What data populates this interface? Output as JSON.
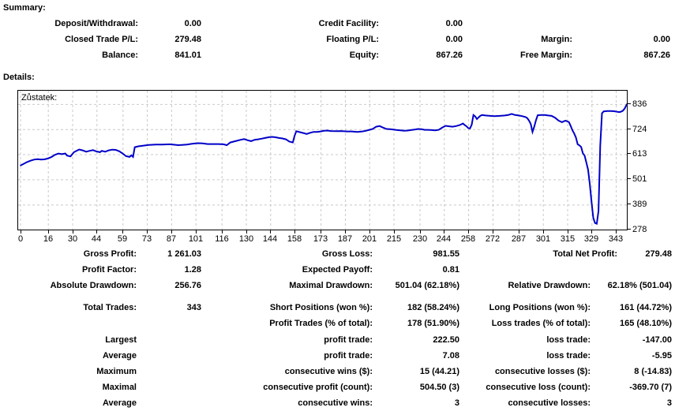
{
  "summary": {
    "title": "Summary:",
    "rows": [
      [
        {
          "label": "Deposit/Withdrawal:",
          "value": "0.00"
        },
        {
          "label": "Credit Facility:",
          "value": "0.00"
        },
        {
          "label": "",
          "value": ""
        }
      ],
      [
        {
          "label": "Closed Trade P/L:",
          "value": "279.48"
        },
        {
          "label": "Floating P/L:",
          "value": "0.00"
        },
        {
          "label": "Margin:",
          "value": "0.00"
        }
      ],
      [
        {
          "label": "Balance:",
          "value": "841.01"
        },
        {
          "label": "Equity:",
          "value": "867.26"
        },
        {
          "label": "Free Margin:",
          "value": "867.26"
        }
      ]
    ]
  },
  "details": {
    "title": "Details:",
    "rows": [
      [
        {
          "label": "Gross Profit:",
          "value": "1 261.03"
        },
        {
          "label": "Gross Loss:",
          "value": "981.55"
        },
        {
          "label": "Total Net Profit:",
          "value": "279.48"
        }
      ],
      [
        {
          "label": "Profit Factor:",
          "value": "1.28"
        },
        {
          "label": "Expected Payoff:",
          "value": "0.81"
        },
        {
          "label": "",
          "value": ""
        }
      ],
      [
        {
          "label": "Absolute Drawdown:",
          "value": "256.76"
        },
        {
          "label": "Maximal Drawdown:",
          "value": "501.04 (62.18%)"
        },
        {
          "label": "Relative Drawdown:",
          "value": "62.18% (501.04)"
        }
      ],
      [
        {
          "label": "Total Trades:",
          "value": "343"
        },
        {
          "label": "Short Positions (won %):",
          "value": "182 (58.24%)"
        },
        {
          "label": "Long Positions (won %):",
          "value": "161 (44.72%)"
        }
      ],
      [
        {
          "label": "",
          "value": ""
        },
        {
          "label": "Profit Trades (% of total):",
          "value": "178 (51.90%)"
        },
        {
          "label": "Loss trades (% of total):",
          "value": "165 (48.10%)"
        }
      ],
      [
        {
          "label": "Largest",
          "value": ""
        },
        {
          "label": "profit trade:",
          "value": "222.50"
        },
        {
          "label": "loss trade:",
          "value": "-147.00"
        }
      ],
      [
        {
          "label": "Average",
          "value": ""
        },
        {
          "label": "profit trade:",
          "value": "7.08"
        },
        {
          "label": "loss trade:",
          "value": "-5.95"
        }
      ],
      [
        {
          "label": "Maximum",
          "value": ""
        },
        {
          "label": "consecutive wins ($):",
          "value": "15 (44.21)"
        },
        {
          "label": "consecutive losses ($):",
          "value": "8 (-14.83)"
        }
      ],
      [
        {
          "label": "Maximal",
          "value": ""
        },
        {
          "label": "consecutive profit (count):",
          "value": "504.50 (3)"
        },
        {
          "label": "consecutive loss (count):",
          "value": "-369.70 (7)"
        }
      ],
      [
        {
          "label": "Average",
          "value": ""
        },
        {
          "label": "consecutive wins:",
          "value": "3"
        },
        {
          "label": "consecutive losses:",
          "value": "3"
        }
      ]
    ]
  },
  "chart_data": {
    "type": "line",
    "series_label": "Zůstatek:",
    "xlabel": "",
    "ylabel": "",
    "x_ticks": [
      0,
      16,
      30,
      44,
      59,
      73,
      87,
      101,
      116,
      130,
      144,
      158,
      173,
      187,
      201,
      215,
      230,
      244,
      258,
      272,
      287,
      301,
      315,
      329,
      343
    ],
    "y_ticks": [
      278,
      389,
      501,
      613,
      724,
      836
    ],
    "xlim": [
      0,
      350
    ],
    "ylim": [
      278,
      895
    ],
    "grid": true,
    "legend_position": "none",
    "line_color": "#0000c8",
    "grid_color": "#c9c9c9",
    "points": [
      [
        0,
        562
      ],
      [
        2,
        570
      ],
      [
        4,
        578
      ],
      [
        6,
        584
      ],
      [
        8,
        589
      ],
      [
        10,
        591
      ],
      [
        12,
        589
      ],
      [
        14,
        590
      ],
      [
        16,
        594
      ],
      [
        18,
        600
      ],
      [
        20,
        610
      ],
      [
        22,
        616
      ],
      [
        24,
        613
      ],
      [
        26,
        616
      ],
      [
        27,
        607
      ],
      [
        29,
        603
      ],
      [
        31,
        622
      ],
      [
        33,
        630
      ],
      [
        34,
        634
      ],
      [
        36,
        630
      ],
      [
        38,
        624
      ],
      [
        40,
        628
      ],
      [
        42,
        631
      ],
      [
        44,
        625
      ],
      [
        46,
        622
      ],
      [
        47,
        628
      ],
      [
        49,
        624
      ],
      [
        51,
        630
      ],
      [
        53,
        633
      ],
      [
        55,
        632
      ],
      [
        57,
        626
      ],
      [
        59,
        616
      ],
      [
        61,
        604
      ],
      [
        63,
        601
      ],
      [
        64,
        608
      ],
      [
        65,
        601
      ],
      [
        66,
        644
      ],
      [
        68,
        648
      ],
      [
        71,
        651
      ],
      [
        74,
        654
      ],
      [
        78,
        656
      ],
      [
        82,
        656
      ],
      [
        86,
        657
      ],
      [
        89,
        655
      ],
      [
        91,
        653
      ],
      [
        93,
        654
      ],
      [
        96,
        656
      ],
      [
        99,
        659
      ],
      [
        102,
        662
      ],
      [
        105,
        661
      ],
      [
        108,
        658
      ],
      [
        111,
        658
      ],
      [
        114,
        658
      ],
      [
        117,
        657
      ],
      [
        119,
        653
      ],
      [
        121,
        665
      ],
      [
        124,
        671
      ],
      [
        127,
        677
      ],
      [
        129,
        680
      ],
      [
        131,
        675
      ],
      [
        133,
        671
      ],
      [
        135,
        677
      ],
      [
        137,
        679
      ],
      [
        139,
        682
      ],
      [
        141,
        685
      ],
      [
        143,
        688
      ],
      [
        145,
        690
      ],
      [
        147,
        688
      ],
      [
        149,
        685
      ],
      [
        151,
        683
      ],
      [
        153,
        679
      ],
      [
        155,
        669
      ],
      [
        157,
        665
      ],
      [
        158,
        694
      ],
      [
        159,
        715
      ],
      [
        161,
        711
      ],
      [
        163,
        707
      ],
      [
        165,
        703
      ],
      [
        167,
        708
      ],
      [
        169,
        712
      ],
      [
        171,
        712
      ],
      [
        173,
        714
      ],
      [
        175,
        717
      ],
      [
        177,
        718
      ],
      [
        179,
        716
      ],
      [
        182,
        715
      ],
      [
        185,
        716
      ],
      [
        188,
        714
      ],
      [
        191,
        714
      ],
      [
        194,
        712
      ],
      [
        197,
        714
      ],
      [
        199,
        717
      ],
      [
        201,
        721
      ],
      [
        203,
        725
      ],
      [
        205,
        735
      ],
      [
        207,
        738
      ],
      [
        209,
        731
      ],
      [
        211,
        725
      ],
      [
        213,
        724
      ],
      [
        215,
        722
      ],
      [
        217,
        720
      ],
      [
        219,
        719
      ],
      [
        221,
        717
      ],
      [
        223,
        718
      ],
      [
        225,
        720
      ],
      [
        227,
        722
      ],
      [
        229,
        725
      ],
      [
        231,
        724
      ],
      [
        233,
        721
      ],
      [
        235,
        721
      ],
      [
        237,
        720
      ],
      [
        239,
        719
      ],
      [
        241,
        721
      ],
      [
        243,
        731
      ],
      [
        245,
        739
      ],
      [
        247,
        737
      ],
      [
        249,
        735
      ],
      [
        251,
        738
      ],
      [
        253,
        742
      ],
      [
        255,
        749
      ],
      [
        256,
        742
      ],
      [
        257,
        737
      ],
      [
        258,
        729
      ],
      [
        259,
        727
      ],
      [
        260,
        744
      ],
      [
        261,
        787
      ],
      [
        262,
        781
      ],
      [
        263,
        769
      ],
      [
        264,
        777
      ],
      [
        265,
        784
      ],
      [
        266,
        787
      ],
      [
        268,
        785
      ],
      [
        270,
        784
      ],
      [
        273,
        782
      ],
      [
        276,
        783
      ],
      [
        279,
        785
      ],
      [
        281,
        787
      ],
      [
        283,
        792
      ],
      [
        285,
        787
      ],
      [
        287,
        785
      ],
      [
        289,
        782
      ],
      [
        291,
        778
      ],
      [
        292,
        773
      ],
      [
        293,
        762
      ],
      [
        294,
        747
      ],
      [
        295,
        712
      ],
      [
        296,
        735
      ],
      [
        297,
        764
      ],
      [
        298,
        786
      ],
      [
        300,
        787
      ],
      [
        302,
        787
      ],
      [
        304,
        785
      ],
      [
        306,
        783
      ],
      [
        308,
        775
      ],
      [
        310,
        762
      ],
      [
        312,
        755
      ],
      [
        313,
        759
      ],
      [
        314,
        762
      ],
      [
        315,
        759
      ],
      [
        316,
        755
      ],
      [
        317,
        738
      ],
      [
        318,
        719
      ],
      [
        319,
        705
      ],
      [
        320,
        687
      ],
      [
        321,
        657
      ],
      [
        322,
        652
      ],
      [
        323,
        645
      ],
      [
        324,
        617
      ],
      [
        325,
        607
      ],
      [
        326,
        576
      ],
      [
        327,
        544
      ],
      [
        328,
        480
      ],
      [
        329,
        400
      ],
      [
        330,
        330
      ],
      [
        331,
        307
      ],
      [
        332,
        304
      ],
      [
        333,
        360
      ],
      [
        334,
        650
      ],
      [
        335,
        795
      ],
      [
        336,
        803
      ],
      [
        338,
        805
      ],
      [
        340,
        805
      ],
      [
        342,
        804
      ],
      [
        344,
        801
      ],
      [
        345,
        800
      ],
      [
        346,
        802
      ],
      [
        347,
        806
      ],
      [
        348,
        815
      ],
      [
        349,
        830
      ],
      [
        350,
        841
      ]
    ]
  }
}
